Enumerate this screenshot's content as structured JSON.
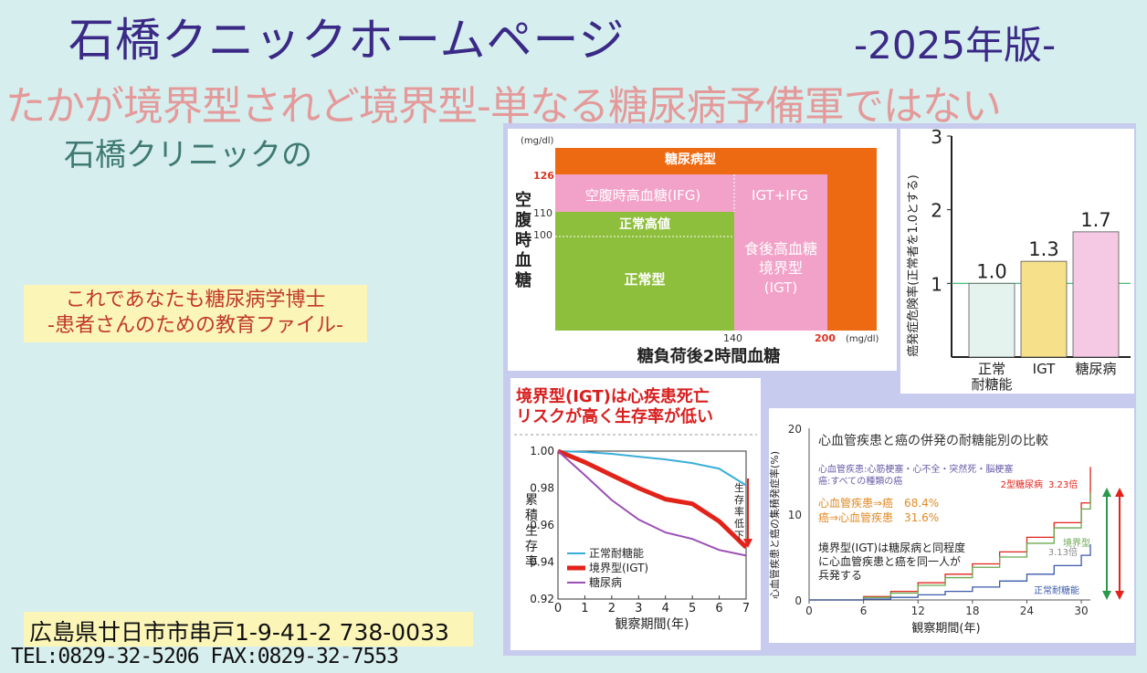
{
  "header": {
    "title": "石橋クニックホームページ",
    "edition": "-2025年版-",
    "subtitle": "たかが境界型されど境界型-単なる糖尿病予備軍ではない",
    "clinic_of": "石橋クリニックの"
  },
  "education": {
    "line1": "これであなたも糖尿病学博士",
    "line2": "-患者さんのための教育ファイル-"
  },
  "contact": {
    "address": "広島県廿日市市串戸1-9-41-2 738-0033",
    "tel_fax": "TEL:0829-32-5206 FAX:0829-32-7553"
  },
  "colors": {
    "orange": "#ee6a12",
    "pink": "#f2a2c8",
    "green": "#8ebf3c",
    "red": "#e2231a",
    "blue": "#3aaed8",
    "purple": "#9b4fb4"
  },
  "chart_data": [
    {
      "type": "diagram",
      "unit_top": "(mg/dl)",
      "unit_right": "(mg/dl)",
      "ylabel": "空腹時血糖",
      "xlabel": "糖負荷後2時間血糖",
      "y_ticks": [
        "126",
        "110",
        "100"
      ],
      "x_ticks": [
        "140",
        "200"
      ],
      "regions": {
        "diabetes": "糖尿病型",
        "ifg": "空腹時高血糖(IFG)",
        "igt_ifg": "IGT+IFG",
        "high_normal": "正常高値",
        "normal": "正常型",
        "igt_line1": "食後高血糖",
        "igt_line2": "境界型",
        "igt_line3": "(IGT)"
      }
    },
    {
      "type": "bar",
      "ylabel": "癌発症危険率(正常者を1.0とする)",
      "ylim": [
        0,
        3
      ],
      "y_ticks": [
        "3",
        "2",
        "1"
      ],
      "categories": [
        "正常耐糖能",
        "IGT",
        "糖尿病"
      ],
      "category_labels": [
        [
          "正常",
          "耐糖能"
        ],
        [
          "IGT"
        ],
        [
          "糖尿病"
        ]
      ],
      "values": [
        1.0,
        1.3,
        1.7
      ],
      "value_labels": [
        "1.0",
        "1.3",
        "1.7"
      ],
      "bar_colors": [
        "#e5f3ee",
        "#f6e08a",
        "#f5c8e4"
      ]
    },
    {
      "type": "line",
      "title_line1": "境界型(IGT)は心疾患死亡",
      "title_line2": "リスクが高く生存率が低い",
      "ylabel": "累積生存率",
      "xlabel": "観察期間(年)",
      "ylim": [
        0.92,
        1.0
      ],
      "y_ticks": [
        "1.00",
        "0.98",
        "0.96",
        "0.94",
        "0.92"
      ],
      "x": [
        0,
        1,
        2,
        3,
        4,
        5,
        6,
        7
      ],
      "arrow_label": "生存率低下",
      "series": [
        {
          "name": "正常耐糖能",
          "values": [
            1.0,
            0.9995,
            0.9985,
            0.997,
            0.9955,
            0.9935,
            0.9905,
            0.9815
          ]
        },
        {
          "name": "境界型(IGT)",
          "values": [
            1.0,
            0.994,
            0.987,
            0.98,
            0.974,
            0.9715,
            0.962,
            0.948
          ]
        },
        {
          "name": "糖尿病",
          "values": [
            1.0,
            0.987,
            0.9735,
            0.963,
            0.956,
            0.9525,
            0.9465,
            0.9435
          ]
        }
      ]
    },
    {
      "type": "line",
      "title": "心血管疾患と癌の併発の耐糖能別の比較",
      "def_line1": "心血管疾患:心筋梗塞・心不全・突然死・脳梗塞",
      "def_line2": "癌:すべての種類の癌",
      "stat_line1": "心血管疾患⇒癌　68.4%",
      "stat_line2": "癌⇒心血管疾患　31.6%",
      "note_line1": "境界型(IGT)は糖尿病と同程度",
      "note_line2": "に心血管疾患と癌を同一人が",
      "note_line3": "兵発する",
      "ylabel": "心血管疾患と癌の集積発症率(%)",
      "xlabel": "観察期間(年)",
      "ylim": [
        0,
        20
      ],
      "xlim": [
        0,
        31
      ],
      "y_ticks": [
        "20",
        "10",
        "0"
      ],
      "x_ticks": [
        "0",
        "6",
        "12",
        "18",
        "24",
        "30"
      ],
      "x": [
        0,
        3,
        6,
        9,
        12,
        15,
        18,
        21,
        24,
        27,
        30,
        31
      ],
      "ratio_diabetes": "3.23倍",
      "ratio_igt": "3.13倍",
      "series": [
        {
          "name": "2型糖尿病",
          "values": [
            0,
            0,
            0.4,
            1.0,
            2.0,
            3.0,
            4.2,
            5.6,
            7.3,
            9.0,
            11.3,
            15.5
          ]
        },
        {
          "name": "境界型",
          "values": [
            0,
            0,
            0.3,
            0.8,
            1.7,
            2.6,
            3.8,
            5.0,
            6.6,
            8.4,
            10.6,
            12.5
          ]
        },
        {
          "name": "正常耐糖能",
          "values": [
            0,
            0,
            0.1,
            0.3,
            0.6,
            1.0,
            1.5,
            2.2,
            3.0,
            4.0,
            5.2,
            6.5
          ]
        }
      ]
    }
  ]
}
